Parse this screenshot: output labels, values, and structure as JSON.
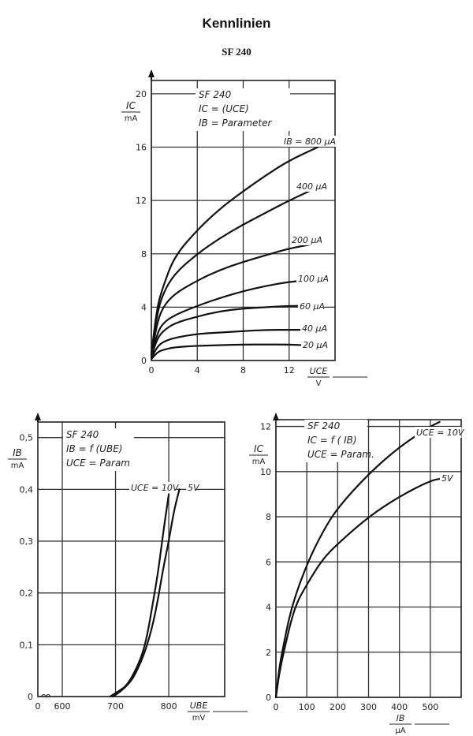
{
  "header": {
    "title": "Kennlinien",
    "subtitle": "SF 240"
  },
  "chart_data": [
    {
      "type": "line",
      "annotation": [
        "SF 240",
        "IC =    (UCE)",
        "IB = Parameter"
      ],
      "xlabel": "UCE",
      "xunit": "V",
      "ylabel": "IC",
      "yunit": "mA",
      "xlim": [
        0,
        16
      ],
      "ylim": [
        0,
        21
      ],
      "x_ticks": [
        0,
        4,
        8,
        12
      ],
      "x_tick_labels": [
        "0",
        "4",
        "8",
        "12"
      ],
      "y_ticks": [
        0,
        4,
        8,
        12,
        16,
        20
      ],
      "y_tick_labels": [
        "0",
        "4",
        "8",
        "12",
        "16",
        "20"
      ],
      "grid": true,
      "series": [
        {
          "name": "IB = 800 µA",
          "x": [
            0,
            0.5,
            1,
            2,
            4,
            6,
            8,
            10,
            12,
            14.5
          ],
          "y": [
            0.5,
            4,
            5.5,
            7.8,
            9.8,
            11.4,
            12.7,
            13.9,
            15,
            16
          ]
        },
        {
          "name": "400 µA",
          "x": [
            0,
            0.5,
            1,
            2,
            4,
            6,
            8,
            10,
            12,
            14.5
          ],
          "y": [
            0.5,
            3.5,
            5,
            6.5,
            8,
            9.2,
            10.2,
            11.1,
            12,
            13
          ]
        },
        {
          "name": "200 µA",
          "x": [
            0,
            0.5,
            1,
            2,
            4,
            6,
            8,
            10,
            12,
            14.5
          ],
          "y": [
            0.4,
            2.8,
            4,
            5,
            6,
            6.8,
            7.4,
            7.9,
            8.4,
            8.8
          ]
        },
        {
          "name": "100 µA",
          "x": [
            0,
            0.5,
            1,
            2,
            4,
            6,
            8,
            10,
            12,
            14.5
          ],
          "y": [
            0.3,
            2,
            2.8,
            3.4,
            4.1,
            4.7,
            5.2,
            5.6,
            5.9,
            6.1
          ]
        },
        {
          "name": "60 µA",
          "x": [
            0,
            0.5,
            1,
            2,
            4,
            6,
            8,
            10,
            12,
            14.5
          ],
          "y": [
            0.3,
            1.6,
            2.2,
            2.8,
            3.3,
            3.7,
            3.9,
            4.0,
            4.1,
            4.1
          ]
        },
        {
          "name": "40 µA",
          "x": [
            0,
            0.5,
            1,
            2,
            4,
            6,
            8,
            10,
            12,
            14.5
          ],
          "y": [
            0.2,
            1.0,
            1.4,
            1.7,
            2.0,
            2.1,
            2.2,
            2.3,
            2.3,
            2.3
          ]
        },
        {
          "name": "20 µA",
          "x": [
            0,
            0.5,
            1,
            2,
            4,
            6,
            8,
            10,
            12,
            14.5
          ],
          "y": [
            0.1,
            0.6,
            0.8,
            1.0,
            1.1,
            1.15,
            1.2,
            1.2,
            1.2,
            1.1
          ]
        }
      ]
    },
    {
      "type": "line",
      "annotation": [
        "SF 240",
        "IB = f (UBE)",
        "UCE = Param"
      ],
      "xlabel": "UBE",
      "xunit": "mV",
      "ylabel": "IB",
      "yunit": "mA",
      "xlim": [
        600,
        905
      ],
      "ylim": [
        0,
        0.53
      ],
      "x_axis_break": true,
      "x_ticks": [
        0,
        600,
        700,
        800
      ],
      "x_tick_labels": [
        "0",
        "600",
        "700",
        "800"
      ],
      "y_ticks": [
        0,
        0.1,
        0.2,
        0.3,
        0.4,
        0.5
      ],
      "y_tick_labels": [
        "0",
        "0,1",
        "0,2",
        "0,3",
        "0,4",
        "0,5"
      ],
      "grid": true,
      "series": [
        {
          "name": "UCE = 10V",
          "x": [
            690,
            705,
            720,
            735,
            750,
            760,
            770,
            780,
            790,
            800
          ],
          "y": [
            0,
            0.01,
            0.02,
            0.045,
            0.08,
            0.12,
            0.18,
            0.24,
            0.32,
            0.39
          ]
        },
        {
          "name": "5V",
          "x": [
            695,
            710,
            730,
            745,
            760,
            775,
            790,
            800,
            810,
            820
          ],
          "y": [
            0,
            0.01,
            0.03,
            0.06,
            0.1,
            0.16,
            0.25,
            0.3,
            0.36,
            0.4
          ]
        }
      ]
    },
    {
      "type": "line",
      "annotation": [
        "SF 240",
        "IC = f ( IB)",
        "UCE = Param."
      ],
      "xlabel": "IB",
      "xunit": "µA",
      "ylabel": "IC",
      "yunit": "mA",
      "xlim": [
        0,
        600
      ],
      "ylim": [
        0,
        12.3
      ],
      "x_ticks": [
        0,
        100,
        200,
        300,
        400,
        500
      ],
      "x_tick_labels": [
        "0",
        "100",
        "200",
        "300",
        "400",
        "500"
      ],
      "y_ticks": [
        0,
        2,
        4,
        6,
        8,
        10,
        12
      ],
      "y_tick_labels": [
        "0",
        "2",
        "4",
        "6",
        "8",
        "10",
        "12"
      ],
      "grid": true,
      "series": [
        {
          "name": "UCE = 10V",
          "x": [
            0,
            10,
            20,
            50,
            100,
            150,
            200,
            300,
            400,
            500,
            530
          ],
          "y": [
            0,
            1.2,
            2,
            4,
            5.9,
            7.3,
            8.4,
            9.9,
            11.1,
            12,
            12.2
          ]
        },
        {
          "name": "5V",
          "x": [
            0,
            10,
            25,
            60,
            100,
            150,
            200,
            300,
            400,
            500,
            540
          ],
          "y": [
            0,
            1,
            2,
            4,
            5,
            6.1,
            6.8,
            8,
            8.9,
            9.6,
            9.7
          ]
        }
      ]
    }
  ]
}
